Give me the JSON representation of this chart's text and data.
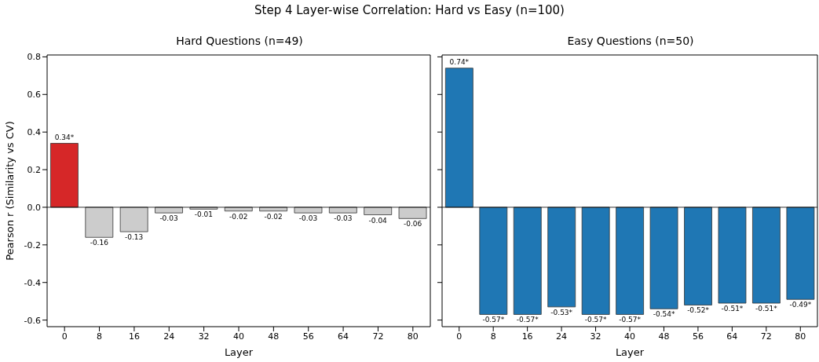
{
  "chart_data": [
    {
      "type": "bar",
      "title": "Step 4 Layer-wise Correlation: Hard vs Easy (n=100)",
      "subtitle": "Hard Questions (n=49)",
      "xlabel": "Layer",
      "ylabel": "Pearson r (Similarity vs CV)",
      "categories": [
        "0",
        "8",
        "16",
        "24",
        "32",
        "40",
        "48",
        "56",
        "64",
        "72",
        "80"
      ],
      "values": [
        0.34,
        -0.16,
        -0.13,
        -0.03,
        -0.01,
        -0.02,
        -0.02,
        -0.03,
        -0.03,
        -0.04,
        -0.06
      ],
      "value_labels": [
        "0.34*",
        "-0.16",
        "-0.13",
        "-0.03",
        "-0.01",
        "-0.02",
        "-0.02",
        "-0.03",
        "-0.03",
        "-0.04",
        "-0.06"
      ],
      "colors": [
        "#d62728",
        "#cccccc",
        "#cccccc",
        "#cccccc",
        "#cccccc",
        "#cccccc",
        "#cccccc",
        "#cccccc",
        "#cccccc",
        "#cccccc",
        "#cccccc"
      ],
      "ylim": [
        -0.635,
        0.81
      ],
      "yticks": [
        -0.6,
        -0.4,
        -0.2,
        {
          "value": 0,
          "label": "0.0"
        },
        0.2,
        0.4,
        0.6,
        0.8
      ],
      "ref_lines": [
        {
          "axis": "y",
          "value": 0,
          "color": "#000000"
        }
      ]
    },
    {
      "type": "bar",
      "subtitle": "Easy Questions (n=50)",
      "xlabel": "Layer",
      "categories": [
        "0",
        "8",
        "16",
        "24",
        "32",
        "40",
        "48",
        "56",
        "64",
        "72",
        "80"
      ],
      "values": [
        0.74,
        -0.57,
        -0.57,
        -0.53,
        -0.57,
        -0.57,
        -0.54,
        -0.52,
        -0.51,
        -0.51,
        -0.49
      ],
      "value_labels": [
        "0.74*",
        "-0.57*",
        "-0.57*",
        "-0.53*",
        "-0.57*",
        "-0.57*",
        "-0.54*",
        "-0.52*",
        "-0.51*",
        "-0.51*",
        "-0.49*"
      ],
      "color": "#1f77b4",
      "ylim": [
        -0.635,
        0.81
      ],
      "yticks": [
        -0.6,
        -0.4,
        -0.2,
        0,
        0.2,
        0.4,
        0.6,
        0.8
      ],
      "tick_labels": "x",
      "ref_lines": [
        {
          "axis": "y",
          "value": 0,
          "color": "#000000"
        }
      ]
    }
  ]
}
